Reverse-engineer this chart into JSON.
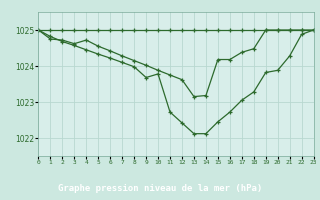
{
  "background_color": "#cce8e0",
  "plot_bg": "#d8eeea",
  "grid_color": "#b8d8d0",
  "line_color": "#2d6a2d",
  "title": "Graphe pression niveau de la mer (hPa)",
  "title_bg": "#2d6a2d",
  "title_fg": "#ffffff",
  "xlim": [
    0,
    23
  ],
  "ylim": [
    1021.5,
    1025.5
  ],
  "yticks": [
    1022,
    1023,
    1024,
    1025
  ],
  "line1_x": [
    0,
    1,
    2,
    3,
    4,
    5,
    6,
    7,
    8,
    9,
    10,
    11,
    12,
    13,
    14,
    15,
    16,
    17,
    18,
    19,
    20,
    21,
    22,
    23
  ],
  "line1_y": [
    1025.0,
    1025.0,
    1025.0,
    1025.0,
    1025.0,
    1025.0,
    1025.0,
    1025.0,
    1025.0,
    1025.0,
    1025.0,
    1025.0,
    1025.0,
    1025.0,
    1025.0,
    1025.0,
    1025.0,
    1025.0,
    1025.0,
    1025.0,
    1025.0,
    1025.0,
    1025.0,
    1025.0
  ],
  "line2_x": [
    0,
    1,
    2,
    3,
    4,
    5,
    6,
    7,
    8,
    9,
    10,
    11,
    12,
    13,
    14,
    15,
    16,
    17,
    18,
    19,
    20,
    21,
    22,
    23
  ],
  "line2_y": [
    1025.0,
    1024.75,
    1024.72,
    1024.62,
    1024.72,
    1024.55,
    1024.42,
    1024.28,
    1024.15,
    1024.02,
    1023.88,
    1023.75,
    1023.62,
    1023.15,
    1023.18,
    1024.18,
    1024.18,
    1024.38,
    1024.48,
    1025.0,
    1025.0,
    1025.0,
    1025.0,
    1025.0
  ],
  "line3_x": [
    0,
    1,
    2,
    3,
    4,
    5,
    6,
    7,
    8,
    9,
    10,
    11,
    12,
    13,
    14,
    15,
    16,
    17,
    18,
    19,
    20,
    21,
    22,
    23
  ],
  "line3_y": [
    1025.0,
    1024.82,
    1024.68,
    1024.57,
    1024.45,
    1024.33,
    1024.22,
    1024.1,
    1023.98,
    1023.68,
    1023.78,
    1022.72,
    1022.42,
    1022.12,
    1022.12,
    1022.45,
    1022.72,
    1023.05,
    1023.28,
    1023.82,
    1023.88,
    1024.28,
    1024.88,
    1025.0
  ]
}
